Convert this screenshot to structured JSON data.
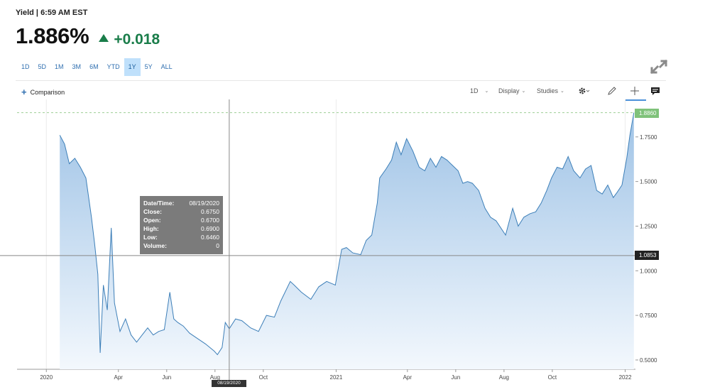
{
  "header": {
    "title": "Yield | 6:59 AM EST"
  },
  "quote": {
    "last": "1.886%",
    "change": "+0.018",
    "change_color": "#1a7d4a",
    "direction": "up"
  },
  "range_tabs": [
    {
      "label": "1D"
    },
    {
      "label": "5D"
    },
    {
      "label": "1M"
    },
    {
      "label": "3M"
    },
    {
      "label": "6M"
    },
    {
      "label": "YTD"
    },
    {
      "label": "1Y",
      "active": true
    },
    {
      "label": "5Y"
    },
    {
      "label": "ALL"
    }
  ],
  "toolbar": {
    "comparison_label": "Comparison",
    "interval_label": "1D",
    "display_label": "Display",
    "studies_label": "Studies",
    "icons": [
      "settings-icon",
      "draw-pencil-icon",
      "crosshair-icon",
      "comment-icon",
      "expand-icon"
    ]
  },
  "tooltip": {
    "date_label": "Date/Time:",
    "date_value": "08/19/2020",
    "close_label": "Close:",
    "close_value": "0.6750",
    "open_label": "Open:",
    "open_value": "0.6700",
    "high_label": "High:",
    "high_value": "0.6900",
    "low_label": "Low:",
    "low_value": "0.6460",
    "volume_label": "Volume:",
    "volume_value": "0"
  },
  "crosshair": {
    "date": "08/19/2020",
    "value": "1.0853"
  },
  "last_value_badge": "1.8860",
  "colors": {
    "line": "#3d7fb8",
    "fill_top": "#9fc3e6",
    "fill_bottom": "#f3f8fd",
    "last_badge": "#7fc27a"
  },
  "chart_data": {
    "type": "area",
    "ylim": [
      0.44,
      1.96
    ],
    "yticks": [
      "0.5000",
      "0.7500",
      "1.0000",
      "1.2500",
      "1.5000",
      "1.7500"
    ],
    "ytick_values": [
      0.5,
      0.75,
      1.0,
      1.25,
      1.5,
      1.75
    ],
    "xtick_labels": [
      "2020",
      "Apr",
      "Jun",
      "Aug",
      "Oct",
      "2021",
      "Apr",
      "Jun",
      "Aug",
      "Oct",
      "2022"
    ],
    "xtick_dates": [
      "2020-01-01",
      "2020-04-01",
      "2020-06-01",
      "2020-08-01",
      "2020-10-01",
      "2021-01-01",
      "2021-04-01",
      "2021-06-01",
      "2021-08-01",
      "2021-10-01",
      "2022-01-01"
    ],
    "grid": "vertical",
    "series": [
      {
        "x": [
          "2020-01-18",
          "2020-01-24",
          "2020-01-30",
          "2020-02-06",
          "2020-02-13",
          "2020-02-20",
          "2020-02-27",
          "2020-03-02",
          "2020-03-06",
          "2020-03-09",
          "2020-03-13",
          "2020-03-18",
          "2020-03-23",
          "2020-03-27",
          "2020-04-03",
          "2020-04-10",
          "2020-04-17",
          "2020-04-24",
          "2020-05-01",
          "2020-05-08",
          "2020-05-15",
          "2020-05-22",
          "2020-05-29",
          "2020-06-05",
          "2020-06-10",
          "2020-06-15",
          "2020-06-22",
          "2020-06-30",
          "2020-07-10",
          "2020-07-20",
          "2020-07-31",
          "2020-08-04",
          "2020-08-10",
          "2020-08-14",
          "2020-08-19",
          "2020-08-27",
          "2020-09-04",
          "2020-09-15",
          "2020-09-25",
          "2020-10-05",
          "2020-10-15",
          "2020-10-23",
          "2020-11-04",
          "2020-11-09",
          "2020-11-18",
          "2020-11-30",
          "2020-12-10",
          "2020-12-20",
          "2020-12-31",
          "2021-01-08",
          "2021-01-14",
          "2021-01-22",
          "2021-02-01",
          "2021-02-08",
          "2021-02-15",
          "2021-02-22",
          "2021-02-25",
          "2021-03-05",
          "2021-03-12",
          "2021-03-18",
          "2021-03-24",
          "2021-03-31",
          "2021-04-08",
          "2021-04-16",
          "2021-04-23",
          "2021-04-30",
          "2021-05-07",
          "2021-05-14",
          "2021-05-21",
          "2021-05-28",
          "2021-06-04",
          "2021-06-10",
          "2021-06-16",
          "2021-06-22",
          "2021-06-30",
          "2021-07-08",
          "2021-07-15",
          "2021-07-22",
          "2021-08-03",
          "2021-08-12",
          "2021-08-19",
          "2021-08-26",
          "2021-09-03",
          "2021-09-10",
          "2021-09-17",
          "2021-09-24",
          "2021-09-30",
          "2021-10-07",
          "2021-10-14",
          "2021-10-21",
          "2021-10-28",
          "2021-11-05",
          "2021-11-12",
          "2021-11-19",
          "2021-11-26",
          "2021-12-03",
          "2021-12-10",
          "2021-12-17",
          "2021-12-22",
          "2021-12-28",
          "2022-01-03",
          "2022-01-07",
          "2022-01-12"
        ],
        "values": [
          1.76,
          1.71,
          1.6,
          1.63,
          1.58,
          1.52,
          1.3,
          1.15,
          0.98,
          0.54,
          0.92,
          0.78,
          1.24,
          0.82,
          0.66,
          0.73,
          0.64,
          0.6,
          0.64,
          0.68,
          0.64,
          0.66,
          0.67,
          0.88,
          0.73,
          0.71,
          0.69,
          0.65,
          0.62,
          0.59,
          0.55,
          0.53,
          0.57,
          0.71,
          0.675,
          0.73,
          0.72,
          0.68,
          0.66,
          0.75,
          0.74,
          0.83,
          0.94,
          0.92,
          0.88,
          0.84,
          0.91,
          0.94,
          0.92,
          1.12,
          1.13,
          1.1,
          1.09,
          1.17,
          1.2,
          1.38,
          1.52,
          1.57,
          1.62,
          1.72,
          1.65,
          1.74,
          1.67,
          1.58,
          1.56,
          1.63,
          1.58,
          1.64,
          1.62,
          1.59,
          1.56,
          1.49,
          1.5,
          1.49,
          1.45,
          1.35,
          1.3,
          1.28,
          1.2,
          1.35,
          1.25,
          1.3,
          1.32,
          1.33,
          1.38,
          1.45,
          1.52,
          1.58,
          1.57,
          1.64,
          1.56,
          1.52,
          1.57,
          1.59,
          1.45,
          1.43,
          1.48,
          1.41,
          1.44,
          1.48,
          1.63,
          1.76,
          1.886
        ]
      }
    ]
  }
}
